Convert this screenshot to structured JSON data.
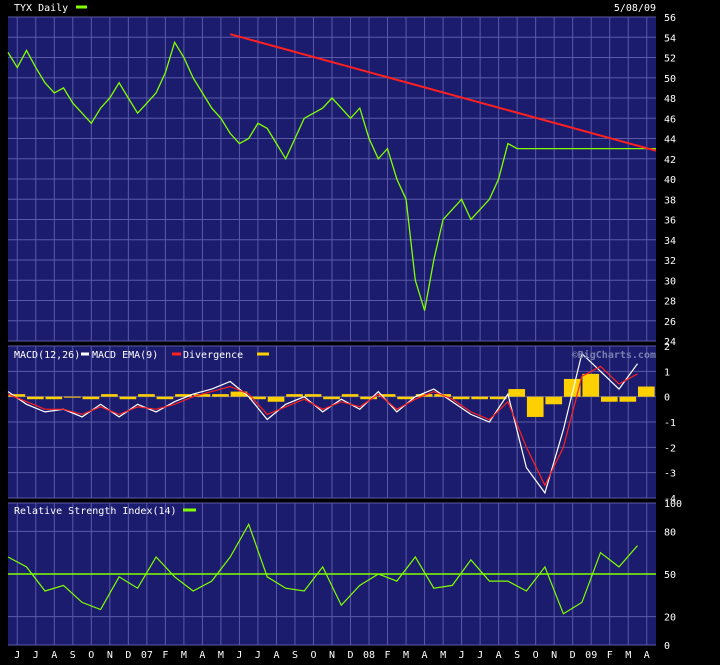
{
  "header": {
    "symbol_label": "TYX Daily",
    "date_label": "5/08/09"
  },
  "watermark": "©BigCharts.com",
  "colors": {
    "background": "#000000",
    "panel": "#1c1c6e",
    "grid": "#5a5aa8",
    "price": "#80ff00",
    "trend": "#ff2020",
    "macd": "#ffffff",
    "ema": "#a0d8ff",
    "signal": "#ff2020",
    "divergence": "#ffd000",
    "rsi": "#80ff00",
    "rsi_mid": "#80ff00"
  },
  "x_axis": {
    "labels": [
      "J",
      "J",
      "A",
      "S",
      "O",
      "N",
      "D",
      "07",
      "F",
      "M",
      "A",
      "M",
      "J",
      "J",
      "A",
      "S",
      "O",
      "N",
      "D",
      "08",
      "F",
      "M",
      "A",
      "M",
      "J",
      "J",
      "A",
      "S",
      "O",
      "N",
      "D",
      "09",
      "F",
      "M",
      "A"
    ]
  },
  "chart_data": [
    {
      "type": "line",
      "title": "TYX Daily",
      "ylim": [
        24,
        56
      ],
      "yticks": [
        24,
        26,
        28,
        30,
        32,
        34,
        36,
        38,
        40,
        42,
        44,
        46,
        48,
        50,
        52,
        54,
        56
      ],
      "grid": true,
      "x_range": [
        0,
        35
      ],
      "series": [
        {
          "name": "TYX Daily",
          "x": [
            0,
            0.5,
            1,
            1.5,
            2,
            2.5,
            3,
            3.5,
            4,
            4.5,
            5,
            5.5,
            6,
            6.5,
            7,
            7.5,
            8,
            8.5,
            9,
            9.5,
            10,
            10.5,
            11,
            11.5,
            12,
            12.5,
            13,
            13.5,
            14,
            14.5,
            15,
            15.5,
            16,
            16.5,
            17,
            17.5,
            18,
            18.5,
            19,
            19.5,
            20,
            20.5,
            21,
            21.5,
            22,
            22.5,
            23,
            23.5,
            24,
            24.5,
            25,
            25.5,
            26,
            26.5,
            27,
            27.5,
            28,
            28.5,
            29,
            29.5,
            30,
            30.5,
            31,
            31.5,
            32,
            32.5,
            33,
            33.5,
            34,
            34.5,
            35
          ],
          "values": [
            52.5,
            51,
            52.7,
            51,
            49.5,
            48.5,
            49,
            47.5,
            46.5,
            45.5,
            47,
            48,
            49.5,
            48,
            46.5,
            47.5,
            48.5,
            50.5,
            53.5,
            52,
            50,
            48.5,
            47,
            46,
            44.5,
            43.5,
            44,
            45.5,
            45,
            43.5,
            42,
            44,
            46,
            46.5,
            47,
            48,
            47,
            46,
            47,
            44,
            42,
            43,
            40,
            38,
            30,
            27,
            32,
            36,
            37,
            38,
            36,
            37,
            38,
            40,
            43.5,
            43,
            43,
            43,
            43,
            43,
            43,
            43,
            43,
            43,
            43,
            43,
            43,
            43,
            43,
            43,
            43
          ]
        },
        {
          "name": "Trendline",
          "x": [
            12,
            35
          ],
          "values": [
            54.3,
            42.8
          ]
        }
      ]
    },
    {
      "type": "line",
      "title": "MACD(12,26)",
      "ylim": [
        -4,
        2
      ],
      "yticks": [
        -4,
        -3,
        -2,
        -1,
        0,
        1,
        2
      ],
      "x_range": [
        0,
        35
      ],
      "series": [
        {
          "name": "MACD(12,26)",
          "x": [
            0,
            1,
            2,
            3,
            4,
            5,
            6,
            7,
            8,
            9,
            10,
            11,
            12,
            13,
            14,
            15,
            16,
            17,
            18,
            19,
            20,
            21,
            22,
            23,
            24,
            25,
            26,
            27,
            28,
            29,
            30,
            31,
            32,
            33,
            34
          ],
          "values": [
            0.2,
            -0.3,
            -0.6,
            -0.5,
            -0.8,
            -0.3,
            -0.8,
            -0.3,
            -0.6,
            -0.2,
            0.1,
            0.3,
            0.6,
            0,
            -0.9,
            -0.3,
            0,
            -0.6,
            -0.1,
            -0.5,
            0.2,
            -0.6,
            0,
            0.3,
            -0.2,
            -0.7,
            -1,
            0.1,
            -2.8,
            -3.8,
            -1.3,
            1.7,
            1,
            0.3,
            1.3
          ]
        },
        {
          "name": "MACD EMA(9)",
          "x": [
            0,
            1,
            2,
            3,
            4,
            5,
            6,
            7,
            8,
            9,
            10,
            11,
            12,
            13,
            14,
            15,
            16,
            17,
            18,
            19,
            20,
            21,
            22,
            23,
            24,
            25,
            26,
            27,
            28,
            29,
            30,
            31,
            32,
            33,
            34
          ],
          "values": [
            0.1,
            -0.2,
            -0.5,
            -0.5,
            -0.7,
            -0.4,
            -0.7,
            -0.4,
            -0.5,
            -0.3,
            0,
            0.2,
            0.4,
            0.1,
            -0.7,
            -0.4,
            -0.1,
            -0.5,
            -0.2,
            -0.4,
            0.1,
            -0.5,
            -0.1,
            0.2,
            -0.1,
            -0.6,
            -0.9,
            -0.2,
            -2,
            -3.5,
            -2,
            0.8,
            1.2,
            0.5,
            0.9
          ]
        },
        {
          "name": "Divergence",
          "x": [
            0,
            1,
            2,
            3,
            4,
            5,
            6,
            7,
            8,
            9,
            10,
            11,
            12,
            13,
            14,
            15,
            16,
            17,
            18,
            19,
            20,
            21,
            22,
            23,
            24,
            25,
            26,
            27,
            28,
            29,
            30,
            31,
            32,
            33,
            34
          ],
          "values": [
            0.1,
            -0.1,
            -0.1,
            0,
            -0.1,
            0.1,
            -0.1,
            0.1,
            -0.1,
            0.1,
            0.1,
            0.1,
            0.2,
            -0.1,
            -0.2,
            0.1,
            0.1,
            -0.1,
            0.1,
            -0.1,
            0.1,
            -0.1,
            0.1,
            0.1,
            -0.1,
            -0.1,
            -0.1,
            0.3,
            -0.8,
            -0.3,
            0.7,
            0.9,
            -0.2,
            -0.2,
            0.4
          ]
        }
      ]
    },
    {
      "type": "line",
      "title": "Relative Strength Index(14)",
      "ylim": [
        0,
        100
      ],
      "yticks": [
        0,
        20,
        50,
        80,
        100
      ],
      "reference_line": 50,
      "x_range": [
        0,
        35
      ],
      "series": [
        {
          "name": "Relative Strength Index(14)",
          "x": [
            0,
            1,
            2,
            3,
            4,
            5,
            6,
            7,
            8,
            9,
            10,
            11,
            12,
            13,
            14,
            15,
            16,
            17,
            18,
            19,
            20,
            21,
            22,
            23,
            24,
            25,
            26,
            27,
            28,
            29,
            30,
            31,
            32,
            33,
            34
          ],
          "values": [
            62,
            55,
            38,
            42,
            30,
            25,
            48,
            40,
            62,
            48,
            38,
            45,
            62,
            85,
            48,
            40,
            38,
            55,
            28,
            42,
            50,
            45,
            62,
            40,
            42,
            60,
            45,
            45,
            38,
            55,
            22,
            30,
            65,
            55,
            70
          ]
        }
      ]
    }
  ]
}
